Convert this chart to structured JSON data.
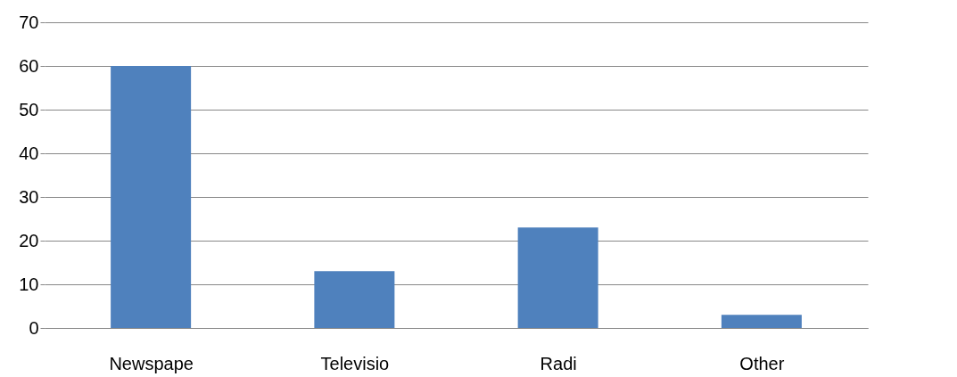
{
  "chart_data": {
    "type": "bar",
    "categories": [
      "Newspape",
      "Televisio",
      "Radi",
      "Other"
    ],
    "values": [
      60,
      13,
      23,
      3
    ],
    "color": "#4f81bd",
    "ylim": [
      0,
      70
    ],
    "yticks": [
      0,
      10,
      20,
      30,
      40,
      50,
      60,
      70
    ],
    "grid": "y"
  }
}
